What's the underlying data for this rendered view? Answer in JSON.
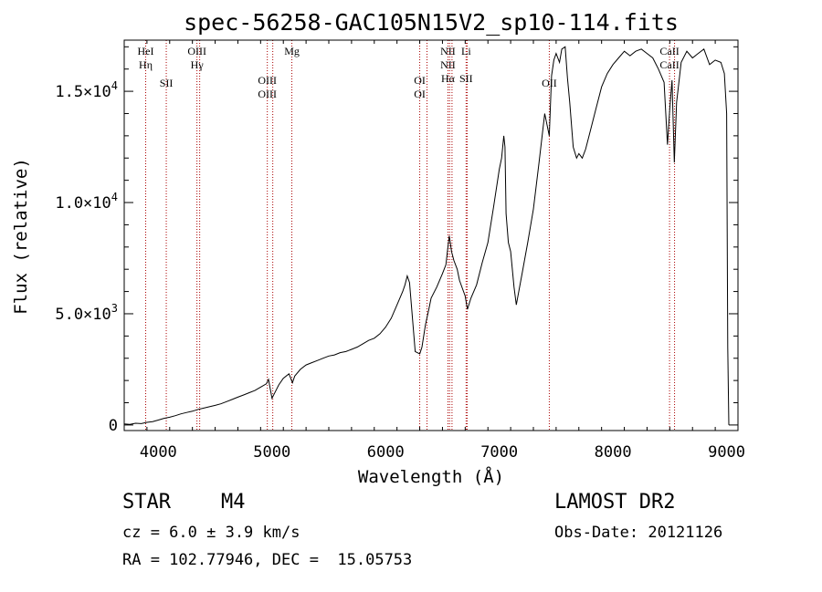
{
  "chart_data": {
    "type": "line",
    "title": "spec-56258-GAC105N15V2_sp10-114.fits",
    "xlabel": "Wavelength (Å)",
    "ylabel": "Flux (relative)",
    "xlim": [
      3700,
      9100
    ],
    "ylim": [
      -250,
      17300
    ],
    "x_ticks": [
      4000,
      5000,
      6000,
      7000,
      8000,
      9000
    ],
    "x_tick_labels": [
      "4000",
      "5000",
      "6000",
      "7000",
      "8000",
      "9000"
    ],
    "y_ticks": [
      {
        "value": 0,
        "mantissa": "0",
        "exp": ""
      },
      {
        "value": 5000,
        "mantissa": "5.0×10",
        "exp": "3"
      },
      {
        "value": 10000,
        "mantissa": "1.0×10",
        "exp": "4"
      },
      {
        "value": 15000,
        "mantissa": "1.5×10",
        "exp": "4"
      }
    ],
    "grid": false,
    "series": [
      {
        "x": [
          3700,
          3750,
          3800,
          3850,
          3900,
          3950,
          4000,
          4050,
          4100,
          4150,
          4200,
          4250,
          4300,
          4350,
          4400,
          4450,
          4500,
          4550,
          4600,
          4650,
          4700,
          4750,
          4800,
          4850,
          4900,
          4950,
          4970,
          5000,
          5030,
          5060,
          5100,
          5150,
          5180,
          5200,
          5250,
          5300,
          5350,
          5400,
          5450,
          5500,
          5550,
          5600,
          5650,
          5700,
          5750,
          5800,
          5850,
          5900,
          5950,
          6000,
          6050,
          6100,
          6150,
          6170,
          6190,
          6210,
          6230,
          6260,
          6300,
          6320,
          6350,
          6380,
          6400,
          6450,
          6500,
          6530,
          6550,
          6560,
          6580,
          6600,
          6630,
          6650,
          6700,
          6720,
          6750,
          6800,
          6850,
          6900,
          6950,
          7000,
          7020,
          7040,
          7050,
          7060,
          7080,
          7100,
          7130,
          7150,
          7200,
          7250,
          7300,
          7350,
          7400,
          7420,
          7440,
          7460,
          7480,
          7500,
          7530,
          7550,
          7580,
          7600,
          7620,
          7650,
          7680,
          7700,
          7730,
          7760,
          7800,
          7850,
          7900,
          7950,
          8000,
          8050,
          8100,
          8150,
          8200,
          8250,
          8300,
          8350,
          8400,
          8450,
          8480,
          8500,
          8520,
          8540,
          8560,
          8600,
          8650,
          8700,
          8750,
          8800,
          8850,
          8900,
          8950,
          8980,
          9000,
          9010,
          9020
        ],
        "y": [
          50,
          30,
          80,
          60,
          120,
          150,
          220,
          300,
          350,
          420,
          500,
          560,
          620,
          700,
          760,
          820,
          880,
          950,
          1050,
          1150,
          1250,
          1350,
          1450,
          1550,
          1700,
          1850,
          2050,
          1200,
          1500,
          1800,
          2100,
          2300,
          1900,
          2200,
          2500,
          2700,
          2800,
          2900,
          3000,
          3100,
          3150,
          3250,
          3300,
          3400,
          3500,
          3650,
          3800,
          3900,
          4100,
          4400,
          4800,
          5400,
          6000,
          6300,
          6700,
          6400,
          5200,
          3300,
          3200,
          3500,
          4500,
          5200,
          5700,
          6200,
          6800,
          7200,
          8100,
          8500,
          7800,
          7400,
          7000,
          6500,
          5800,
          5200,
          5700,
          6300,
          7300,
          8200,
          9800,
          11500,
          12000,
          13000,
          12500,
          9500,
          8200,
          7800,
          6200,
          5400,
          6800,
          8200,
          9700,
          11800,
          14000,
          13500,
          13000,
          15700,
          16400,
          16700,
          16300,
          16900,
          17000,
          15600,
          14500,
          12500,
          12000,
          12200,
          12000,
          12400,
          13200,
          14200,
          15200,
          15800,
          16200,
          16500,
          16800,
          16600,
          16800,
          16900,
          16700,
          16500,
          16000,
          15400,
          12600,
          14200,
          15500,
          11800,
          14500,
          16300,
          16800,
          16500,
          16700,
          16900,
          16200,
          16400,
          16300,
          15800,
          14000,
          3500,
          0
        ]
      }
    ],
    "lines": [
      {
        "x": 3889,
        "labels": [
          "HeI",
          "Hη"
        ],
        "level": 0
      },
      {
        "x": 4070,
        "labels": [
          "SII"
        ],
        "level": 2
      },
      {
        "x": 4340,
        "labels": [
          "OIII",
          "Hγ"
        ],
        "level": 0
      },
      {
        "x": 4364,
        "labels": [],
        "level": 0
      },
      {
        "x": 4959,
        "labels": [
          "OIII",
          "OIII"
        ],
        "level": 1
      },
      {
        "x": 5007,
        "labels": [],
        "level": 1
      },
      {
        "x": 5175,
        "labels": [
          "Mg"
        ],
        "level": 0
      },
      {
        "x": 6300,
        "labels": [
          "OI",
          "OI"
        ],
        "level": 1
      },
      {
        "x": 6364,
        "labels": [],
        "level": 1
      },
      {
        "x": 6548,
        "labels": [
          "NII",
          "NII",
          "Hα"
        ],
        "level": 0
      },
      {
        "x": 6563,
        "labels": [],
        "level": 0
      },
      {
        "x": 6584,
        "labels": [],
        "level": 0
      },
      {
        "x": 6708,
        "labels": [
          "Li",
          "",
          "SII"
        ],
        "level": 0
      },
      {
        "x": 6717,
        "labels": [],
        "level": 0
      },
      {
        "x": 7440,
        "labels": [
          "OII"
        ],
        "level": 2
      },
      {
        "x": 8498,
        "labels": [
          "CaII",
          "CaII"
        ],
        "level": 0
      },
      {
        "x": 8542,
        "labels": [],
        "level": 0
      }
    ],
    "line_color": "#aa0000"
  },
  "info": {
    "object_type": "STAR",
    "subclass": "M4",
    "survey": "LAMOST DR2",
    "cz": "cz = 6.0 ± 3.9 km/s",
    "obs_date": "Obs-Date: 20121126",
    "coords": "RA = 102.77946, DEC =  15.05753"
  }
}
